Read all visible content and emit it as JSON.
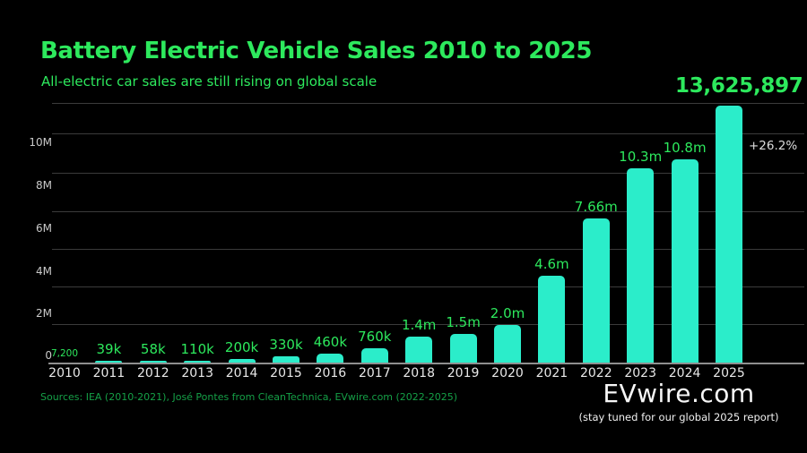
{
  "header": {
    "title": "Battery Electric Vehicle Sales 2010 to 2025",
    "subtitle": "All-electric car sales are still rising on global scale"
  },
  "chart_data": {
    "type": "bar",
    "title": "Battery Electric Vehicle Sales 2010 to 2025",
    "subtitle": "All-electric car sales are still rising on global scale",
    "categories": [
      "2010",
      "2011",
      "2012",
      "2013",
      "2014",
      "2015",
      "2016",
      "2017",
      "2018",
      "2019",
      "2020",
      "2021",
      "2022",
      "2023",
      "2024",
      "2025"
    ],
    "values": [
      7200,
      39000,
      58000,
      110000,
      200000,
      330000,
      460000,
      760000,
      1400000,
      1500000,
      2000000,
      4600000,
      7660000,
      10300000,
      10800000,
      13625897
    ],
    "bar_labels": [
      "7,200",
      "39k",
      "58k",
      "110k",
      "200k",
      "330k",
      "460k",
      "760k",
      "1.4m",
      "1.5m",
      "2.0m",
      "4.6m",
      "7.66m",
      "10.3m",
      "10.8m",
      "13,625,897"
    ],
    "y_ticks": [
      "10M",
      "8M",
      "6M",
      "4M",
      "2M",
      "0"
    ],
    "ylim": [
      0,
      14000000
    ],
    "grid": true,
    "legend": "none",
    "highlight": {
      "index": 15,
      "annotation": "+26.2%"
    },
    "colors": {
      "bar": "#2bedca",
      "value_label": "#2de95d",
      "accent_green": "#2de95d",
      "axis_text": "#c9c9c9",
      "gridline": "#3b3b3b"
    }
  },
  "footer": {
    "sources": "Sources: IEA (2010-2021), José Pontes from CleanTechnica, EVwire.com (2022-2025)",
    "brand": "EVwire.com",
    "tagline": "(stay tuned for our global 2025 report)"
  }
}
